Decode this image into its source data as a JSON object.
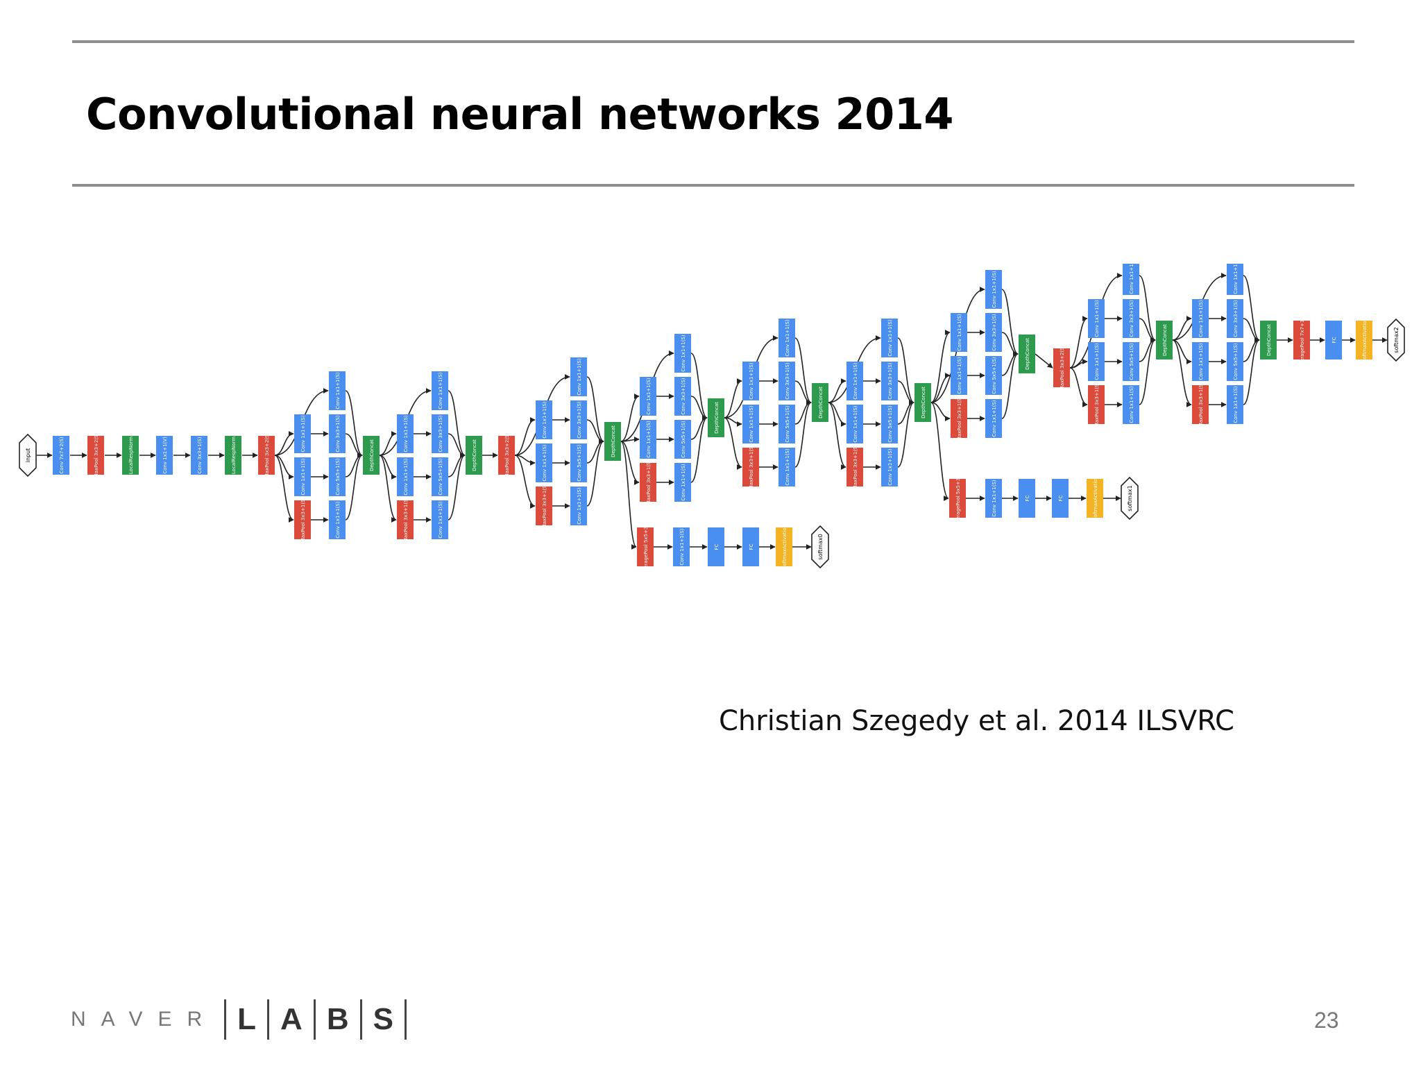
{
  "slide": {
    "title": "Convolutional neural networks 2014",
    "citation": "Christian Szegedy et al. 2014 ILSVRC",
    "page_number": "23"
  },
  "logo": {
    "naver": "NAVER",
    "labs_letters": [
      "L",
      "A",
      "B",
      "S"
    ]
  },
  "colors": {
    "conv": "#4a8ef0",
    "pool": "#db4a3a",
    "concat": "#2e9a4e",
    "softmax": "#f4b323",
    "terminal": "#ffffff",
    "rule": "#8e8e8e"
  },
  "diagram": {
    "terminals": {
      "input": "input",
      "softmax0": "softmax0",
      "softmax1": "softmax1",
      "softmax2": "softmax2"
    },
    "stem": [
      {
        "type": "conv",
        "label": "Conv 7x7+2(S)"
      },
      {
        "type": "pool",
        "label": "MaxPool 3x3+2(S)"
      },
      {
        "type": "concat",
        "label": "LocalRespNorm"
      },
      {
        "type": "conv",
        "label": "Conv 1x1+1(V)"
      },
      {
        "type": "conv",
        "label": "Conv 3x3+1(S)"
      },
      {
        "type": "concat",
        "label": "LocalRespNorm"
      },
      {
        "type": "pool",
        "label": "MaxPool 3x3+2(S)"
      }
    ],
    "inception": {
      "inner_labels": [
        "Conv 1x1+1(S)",
        "Conv 1x1+1(S)",
        "Conv 1x1+1(S)",
        "MaxPool 3x3+1(S)"
      ],
      "outer_labels": [
        "Conv 1x1+1(S)",
        "Conv 3x3+1(S)",
        "Conv 5x5+1(S)",
        "Conv 1x1+1(S)"
      ],
      "concat_label": "DepthConcat"
    },
    "mid_pool_label": "MaxPool 3x3+2(S)",
    "aux_labels": [
      "AveragePool 5x5+3(V)",
      "Conv 1x1+1(S)",
      "FC",
      "FC",
      "SoftmaxActivation"
    ],
    "head_labels": [
      "AveragePool 7x7+1(V)",
      "FC",
      "SoftmaxActivation"
    ]
  }
}
